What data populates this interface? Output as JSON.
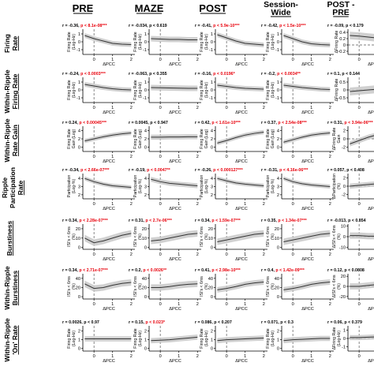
{
  "column_titles": [
    "PRE",
    "MAZE",
    "POST",
    "Session-\nWide",
    "POST -\nPRE"
  ],
  "row_labels": [
    [
      "Firing",
      "Rate"
    ],
    [
      "Within-Ripple",
      "Firing Rate"
    ],
    [
      "Within-Ripple",
      "Rate Gain"
    ],
    [
      "Ripple",
      "Participation",
      "Rate"
    ],
    [
      "Burstiness"
    ],
    [
      "Within-Ripple",
      "Burstiness"
    ],
    [
      "Within-Ripple",
      "'On' Rate"
    ]
  ],
  "y_axis_labels": [
    [
      "Firing Rate",
      "(Log-Hz)",
      "ΔFiring Rate"
    ],
    [
      "Firing Rate",
      "(Log-Hz)",
      "ΔFiring Rate"
    ],
    [
      "Firing Rate",
      "Gain (Log)",
      "ΔFiring Rate",
      "Gain"
    ],
    [
      "Participation",
      "(Log-%)",
      "ΔParticipation",
      "(%)"
    ],
    [
      "ISI's < 6ms",
      "(%)",
      "ΔISI's < 6ms",
      "(%)"
    ],
    [
      "ISI's < 6ms",
      "(%)",
      "ΔISI's < 6ms",
      "(%)"
    ],
    [
      "Firing Rate",
      "(Log-Hz)",
      "ΔFiring Rate",
      "(Log-Hz)"
    ]
  ],
  "x_axis_label": "ΔPCC",
  "x_tick_labels": [
    "0",
    "1",
    "2"
  ],
  "colors": {
    "significant": "#e8000b",
    "nonsignificant": "#000000",
    "band": "#c8c8c8",
    "line": "#333333"
  },
  "chart_data": {
    "type": "line",
    "layout": "grid",
    "x": [
      -0.5,
      0,
      0.5,
      1,
      1.5,
      2
    ],
    "xlim": [
      -0.6,
      2.2
    ],
    "rows": [
      [
        {
          "r": "r = -0.36, ",
          "p": "p < 8.1e-08",
          "stars": "***",
          "sig": true,
          "yticks": [
            "1",
            "0",
            "-1"
          ],
          "ylim": [
            -1.6,
            1.6
          ],
          "y": [
            0.8,
            0.4,
            0.1,
            -0.2,
            -0.3,
            -0.35
          ],
          "band": 0.3
        },
        {
          "r": "r = -0.034, ",
          "p": "p < 0.619",
          "stars": "",
          "sig": false,
          "yticks": [
            "1",
            "0",
            "-1"
          ],
          "ylim": [
            -1.6,
            1.6
          ],
          "y": [
            0.4,
            0.35,
            0.3,
            0.3,
            0.25,
            0.25
          ],
          "band": 0.35
        },
        {
          "r": "r = -0.41, ",
          "p": "p < 5.9e-10",
          "stars": "***",
          "sig": true,
          "yticks": [
            "1",
            "0",
            "-1"
          ],
          "ylim": [
            -1.6,
            1.6
          ],
          "y": [
            0.9,
            0.5,
            0.1,
            -0.2,
            -0.3,
            -0.4
          ],
          "band": 0.3
        },
        {
          "r": "r = -0.42, ",
          "p": "p < 1.5e-10",
          "stars": "***",
          "sig": true,
          "yticks": [
            "1",
            "0",
            "-1"
          ],
          "ylim": [
            -1.6,
            1.6
          ],
          "y": [
            0.8,
            0.4,
            0.0,
            -0.25,
            -0.35,
            -0.4
          ],
          "band": 0.3
        },
        {
          "r": "r = -0.09, ",
          "p": "p < 0.179",
          "stars": "",
          "sig": false,
          "yticks": [
            "0.4",
            "0.2",
            "0",
            "-0.2"
          ],
          "ylim": [
            -0.3,
            0.5
          ],
          "y": [
            0.3,
            0.28,
            0.25,
            0.22,
            0.2,
            0.2
          ],
          "band": 0.12
        }
      ],
      [
        {
          "r": "r = -0.24, ",
          "p": "p < 0.0003",
          "stars": "***",
          "sig": true,
          "yticks": [
            "1",
            "0",
            "-1"
          ],
          "ylim": [
            -1.6,
            1.6
          ],
          "y": [
            0.7,
            0.5,
            0.3,
            0.15,
            0.05,
            0.0
          ],
          "band": 0.3
        },
        {
          "r": "r = -0.063, ",
          "p": "p < 0.355",
          "stars": "",
          "sig": false,
          "yticks": [
            "1",
            "0",
            "-1"
          ],
          "ylim": [
            -1.6,
            1.6
          ],
          "y": [
            0.3,
            0.28,
            0.25,
            0.22,
            0.2,
            0.2
          ],
          "band": 0.35
        },
        {
          "r": "r = -0.16, ",
          "p": "p < 0.0196",
          "stars": "*",
          "sig": true,
          "yticks": [
            "1",
            "0",
            "-1"
          ],
          "ylim": [
            -1.6,
            1.6
          ],
          "y": [
            0.6,
            0.45,
            0.3,
            0.2,
            0.15,
            0.1
          ],
          "band": 0.3
        },
        {
          "r": "r = -0.2, ",
          "p": "p < 0.0034",
          "stars": "**",
          "sig": true,
          "yticks": [
            "1",
            "0",
            "-1"
          ],
          "ylim": [
            -1.6,
            1.6
          ],
          "y": [
            0.6,
            0.45,
            0.3,
            0.2,
            0.1,
            0.05
          ],
          "band": 0.3
        },
        {
          "r": "r = 0.1, ",
          "p": "p < 0.144",
          "stars": "",
          "sig": false,
          "yticks": [
            "0.5",
            "0",
            "-0.5"
          ],
          "ylim": [
            -0.8,
            0.8
          ],
          "y": [
            -0.1,
            -0.05,
            0.0,
            0.05,
            0.1,
            0.1
          ],
          "band": 0.25
        }
      ],
      [
        {
          "r": "r = 0.24, ",
          "p": "p < 0.00045",
          "stars": "***",
          "sig": true,
          "yticks": [
            "4",
            "2",
            "0"
          ],
          "ylim": [
            -1,
            5
          ],
          "y": [
            1.5,
            2.0,
            2.5,
            2.9,
            3.2,
            3.4
          ],
          "band": 0.5
        },
        {
          "r": "r = 0.0045, ",
          "p": "p < 0.947",
          "stars": "",
          "sig": false,
          "yticks": [
            "4",
            "2",
            "0"
          ],
          "ylim": [
            -1,
            5
          ],
          "y": [
            2.4,
            2.4,
            2.45,
            2.45,
            2.5,
            2.5
          ],
          "band": 0.6
        },
        {
          "r": "r = 0.42, ",
          "p": "p < 1.61e-10",
          "stars": "***",
          "sig": true,
          "yticks": [
            "4",
            "2",
            "0"
          ],
          "ylim": [
            -1,
            5
          ],
          "y": [
            1.0,
            1.6,
            2.3,
            2.9,
            3.3,
            3.6
          ],
          "band": 0.5
        },
        {
          "r": "r = 0.37, ",
          "p": "p < 2.54e-08",
          "stars": "***",
          "sig": true,
          "yticks": [
            "4",
            "2",
            "0"
          ],
          "ylim": [
            -1,
            5
          ],
          "y": [
            1.2,
            1.8,
            2.4,
            2.9,
            3.2,
            3.4
          ],
          "band": 0.5
        },
        {
          "r": "r = 0.31, ",
          "p": "p < 3.94e-06",
          "stars": "***",
          "sig": true,
          "yticks": [
            "2",
            "0",
            "-2"
          ],
          "ylim": [
            -3,
            3
          ],
          "y": [
            -1.2,
            -0.4,
            0.4,
            1.0,
            1.3,
            1.5
          ],
          "band": 0.6
        }
      ],
      [
        {
          "r": "r = -0.34, ",
          "p": "p < 2.66e-07",
          "stars": "***",
          "sig": true,
          "yticks": [
            "4",
            "3",
            "2"
          ],
          "ylim": [
            1.5,
            4.6
          ],
          "y": [
            4.0,
            3.6,
            3.3,
            3.1,
            3.0,
            2.9
          ],
          "band": 0.25
        },
        {
          "r": "r = -0.19, ",
          "p": "p < 0.0047",
          "stars": "**",
          "sig": true,
          "yticks": [
            "4",
            "3",
            "2"
          ],
          "ylim": [
            1.5,
            4.6
          ],
          "y": [
            3.9,
            3.6,
            3.4,
            3.3,
            3.2,
            3.1
          ],
          "band": 0.3
        },
        {
          "r": "r = -0.26, ",
          "p": "p < 0.000127",
          "stars": "***",
          "sig": true,
          "yticks": [
            "4",
            "3",
            "2"
          ],
          "ylim": [
            1.5,
            4.6
          ],
          "y": [
            4.0,
            3.7,
            3.45,
            3.3,
            3.2,
            3.1
          ],
          "band": 0.25
        },
        {
          "r": "r = -0.31, ",
          "p": "p < 4.16e-06",
          "stars": "***",
          "sig": true,
          "yticks": [
            "4",
            "3",
            "2"
          ],
          "ylim": [
            1.5,
            4.6
          ],
          "y": [
            4.0,
            3.6,
            3.35,
            3.2,
            3.1,
            3.0
          ],
          "band": 0.25
        },
        {
          "r": "r = 0.057, ",
          "p": "p < 0.408",
          "stars": "",
          "sig": false,
          "yticks": [
            "2",
            "0",
            "-2"
          ],
          "ylim": [
            -3,
            3
          ],
          "y": [
            0.0,
            0.2,
            0.4,
            0.6,
            0.7,
            0.7
          ],
          "band": 0.6
        }
      ],
      [
        {
          "r": "r = 0.34, ",
          "p": "p < 2.28e-07",
          "stars": "***",
          "sig": true,
          "yticks": [
            "20",
            "10",
            "0"
          ],
          "ylim": [
            -2,
            25
          ],
          "y": [
            10,
            5,
            7,
            10,
            13,
            15
          ],
          "band": 3.5
        },
        {
          "r": "r = 0.31, ",
          "p": "p < 2.7e-06",
          "stars": "***",
          "sig": true,
          "yticks": [
            "20",
            "10",
            "0"
          ],
          "ylim": [
            -2,
            25
          ],
          "y": [
            7,
            8,
            10,
            12,
            14,
            15
          ],
          "band": 3.5
        },
        {
          "r": "r = 0.34, ",
          "p": "p < 1.59e-07",
          "stars": "***",
          "sig": true,
          "yticks": [
            "20",
            "10",
            "0"
          ],
          "ylim": [
            -2,
            25
          ],
          "y": [
            6,
            8,
            10,
            12,
            14,
            15
          ],
          "band": 3.5
        },
        {
          "r": "r = 0.35, ",
          "p": "p < 1.34e-07",
          "stars": "***",
          "sig": true,
          "yticks": [
            "20",
            "10",
            "0"
          ],
          "ylim": [
            -2,
            25
          ],
          "y": [
            6,
            8,
            10,
            12,
            14,
            15
          ],
          "band": 3.5
        },
        {
          "r": "r = -0.013, ",
          "p": "p < 0.854",
          "stars": "",
          "sig": false,
          "yticks": [
            "10",
            "0",
            "-10"
          ],
          "ylim": [
            -12,
            12
          ],
          "y": [
            1,
            1,
            0.5,
            0.5,
            0,
            0
          ],
          "band": 3
        }
      ],
      [
        {
          "r": "r = 0.34, ",
          "p": "p < 2.71e-07",
          "stars": "***",
          "sig": true,
          "yticks": [
            "40",
            "20",
            "0"
          ],
          "ylim": [
            -5,
            50
          ],
          "y": [
            28,
            18,
            20,
            25,
            29,
            31
          ],
          "band": 7
        },
        {
          "r": "r = 0.2, ",
          "p": "p < 0.0026",
          "stars": "**",
          "sig": true,
          "yticks": [
            "40",
            "20",
            "0"
          ],
          "ylim": [
            -5,
            50
          ],
          "y": [
            20,
            20,
            22,
            25,
            27,
            28
          ],
          "band": 7
        },
        {
          "r": "r = 0.41, ",
          "p": "p < 2.98e-10",
          "stars": "***",
          "sig": true,
          "yticks": [
            "40",
            "20",
            "0"
          ],
          "ylim": [
            -5,
            50
          ],
          "y": [
            15,
            18,
            22,
            27,
            30,
            32
          ],
          "band": 6
        },
        {
          "r": "r = 0.4, ",
          "p": "p < 1.42e-09",
          "stars": "***",
          "sig": true,
          "yticks": [
            "40",
            "20",
            "0"
          ],
          "ylim": [
            -5,
            50
          ],
          "y": [
            15,
            18,
            22,
            27,
            30,
            32
          ],
          "band": 6
        },
        {
          "r": "r = 0.12, ",
          "p": "p < 0.0808",
          "stars": "",
          "sig": false,
          "yticks": [
            "20",
            "0",
            "-20"
          ],
          "ylim": [
            -25,
            25
          ],
          "y": [
            0,
            0,
            2,
            4,
            5,
            5
          ],
          "band": 6
        }
      ],
      [
        {
          "r": "r = 0.0026, ",
          "p": "p < 0.97",
          "stars": "",
          "sig": false,
          "yticks": [
            "2",
            "1",
            "0"
          ],
          "ylim": [
            -0.3,
            2.6
          ],
          "y": [
            1.1,
            1.1,
            1.1,
            1.1,
            1.1,
            1.1
          ],
          "band": 0.3
        },
        {
          "r": "r = 0.15, ",
          "p": "p < 0.023",
          "stars": "*",
          "sig": true,
          "yticks": [
            "2",
            "1",
            "0"
          ],
          "ylim": [
            -0.3,
            2.6
          ],
          "y": [
            0.9,
            0.95,
            1.0,
            1.1,
            1.2,
            1.3
          ],
          "band": 0.3
        },
        {
          "r": "r = 0.086, ",
          "p": "p < 0.207",
          "stars": "",
          "sig": false,
          "yticks": [
            "2",
            "1",
            "0"
          ],
          "ylim": [
            -0.3,
            2.6
          ],
          "y": [
            0.9,
            1.0,
            1.05,
            1.1,
            1.15,
            1.2
          ],
          "band": 0.3
        },
        {
          "r": "r = 0.071, ",
          "p": "p < 0.3",
          "stars": "",
          "sig": false,
          "yticks": [
            "2",
            "1",
            "0"
          ],
          "ylim": [
            -0.3,
            2.6
          ],
          "y": [
            0.9,
            1.0,
            1.05,
            1.1,
            1.15,
            1.15
          ],
          "band": 0.3
        },
        {
          "r": "r = 0.06, ",
          "p": "p < 0.379",
          "stars": "",
          "sig": false,
          "yticks": [
            "1",
            "0",
            "-1"
          ],
          "ylim": [
            -1.5,
            1.5
          ],
          "y": [
            0.1,
            0.1,
            0.15,
            0.2,
            0.2,
            0.2
          ],
          "band": 0.3
        }
      ]
    ]
  }
}
